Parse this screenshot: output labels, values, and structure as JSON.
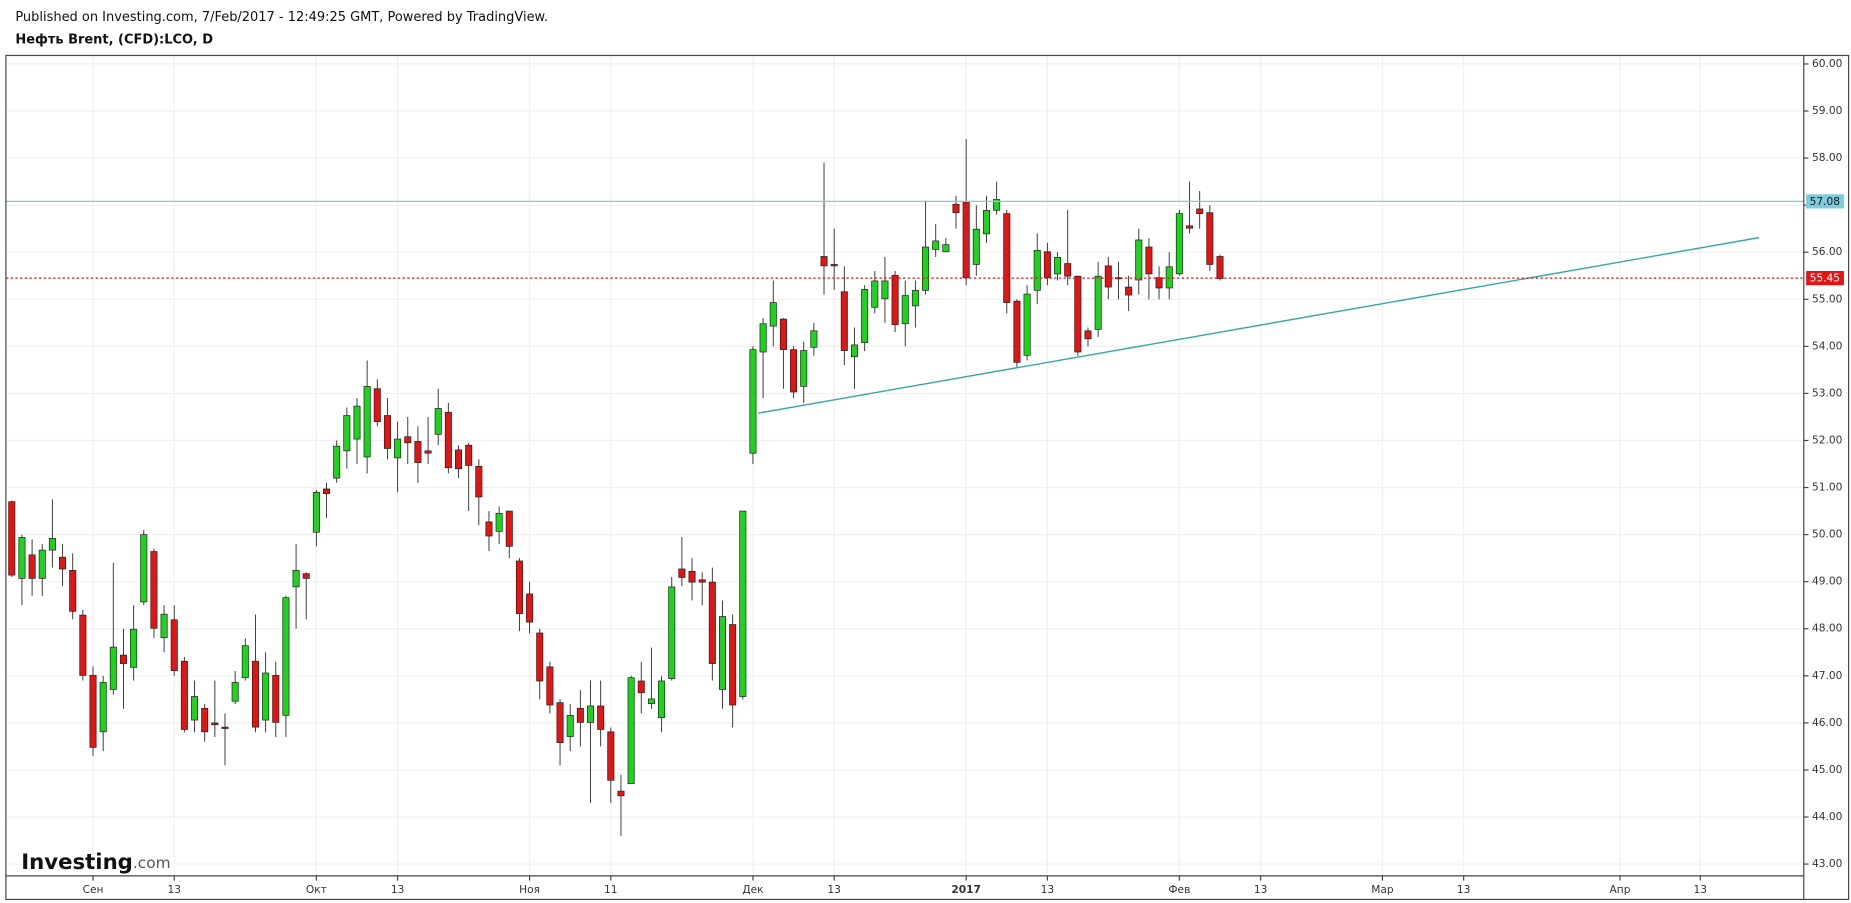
{
  "chart_data": {
    "type": "candlestick",
    "subtitle": "Published on Investing.com, 7/Feb/2017 - 12:49:25 GMT, Powered by TradingView.",
    "title": "Нефть Brent, (CFD):LCO, D",
    "up_color": "#1ed31e",
    "down_color": "#e31414",
    "grid": true,
    "series": [
      {
        "open": [
          50.7,
          49.07,
          49.57,
          49.07,
          49.67,
          49.52,
          49.24,
          48.29,
          47.01,
          45.81,
          46.71,
          47.44,
          47.18,
          48.57,
          49.64,
          47.81,
          48.19,
          47.31,
          46.06,
          46.31,
          46.0,
          45.91,
          46.46,
          46.96,
          47.31,
          46.06,
          47.01,
          46.16,
          48.89,
          49.17,
          50.05,
          50.97,
          51.2,
          51.78,
          52.03,
          51.65,
          53.1,
          52.53,
          51.63,
          52.08,
          51.98,
          51.78,
          52.13,
          52.6,
          51.8,
          51.9,
          51.45,
          50.27,
          50.07,
          50.5,
          49.44,
          48.74,
          47.91,
          47.19,
          46.43,
          45.71,
          46.31,
          46.01,
          46.36,
          45.81,
          44.55,
          44.71,
          46.89,
          46.41,
          46.11,
          46.94,
          49.27,
          49.22,
          49.04,
          48.99,
          46.71,
          48.09,
          46.56,
          51.73,
          53.88,
          54.43,
          54.58,
          53.93,
          53.15,
          53.98,
          55.91,
          55.74,
          55.16,
          53.78,
          54.08,
          54.83,
          55.01,
          55.51,
          54.48,
          54.86,
          55.19,
          56.06,
          56.01,
          57.02,
          57.07,
          55.74,
          56.39,
          56.89,
          56.82,
          54.96,
          53.81,
          55.19,
          56.01,
          55.54,
          55.76,
          55.49,
          54.33,
          54.36,
          55.71,
          55.46,
          55.26,
          55.41,
          56.11,
          55.46,
          55.24,
          55.54,
          56.56,
          56.92,
          56.84,
          55.91
        ],
        "high": [
          50.72,
          50.0,
          49.9,
          49.8,
          50.75,
          49.8,
          49.6,
          48.4,
          47.2,
          47.0,
          49.4,
          48.0,
          48.5,
          50.1,
          49.7,
          48.5,
          48.5,
          47.4,
          46.9,
          46.4,
          46.9,
          46.2,
          47.1,
          47.8,
          48.3,
          47.5,
          47.3,
          48.7,
          49.8,
          49.2,
          50.95,
          51.1,
          52.0,
          52.7,
          52.9,
          53.7,
          53.3,
          52.9,
          52.4,
          52.5,
          52.3,
          52.5,
          53.1,
          52.8,
          51.9,
          51.95,
          51.6,
          50.5,
          50.6,
          50.5,
          49.5,
          49.0,
          48.0,
          47.3,
          46.5,
          46.4,
          46.7,
          46.9,
          46.9,
          45.9,
          44.9,
          47.0,
          47.3,
          47.6,
          47.0,
          49.1,
          49.95,
          49.5,
          49.2,
          49.3,
          48.6,
          48.3,
          50.5,
          54.0,
          54.6,
          55.4,
          54.6,
          54.0,
          54.1,
          54.5,
          57.9,
          56.5,
          55.7,
          54.4,
          55.3,
          55.6,
          55.9,
          55.6,
          55.4,
          55.4,
          57.1,
          56.6,
          56.3,
          57.2,
          58.4,
          57.0,
          57.2,
          57.5,
          56.9,
          55.0,
          55.3,
          56.4,
          56.2,
          56.0,
          56.9,
          55.5,
          54.4,
          55.8,
          55.9,
          55.8,
          55.5,
          56.5,
          56.3,
          55.7,
          56.0,
          56.9,
          57.5,
          57.3,
          57.0,
          55.95
        ],
        "low": [
          49.1,
          48.5,
          48.7,
          48.7,
          49.3,
          48.9,
          48.2,
          46.9,
          45.3,
          45.4,
          46.6,
          46.3,
          46.9,
          48.5,
          47.8,
          47.5,
          47.0,
          45.8,
          45.8,
          45.6,
          45.7,
          45.1,
          46.4,
          46.9,
          45.8,
          45.8,
          45.7,
          45.7,
          48.0,
          48.2,
          49.75,
          50.35,
          51.1,
          51.4,
          51.5,
          51.3,
          52.3,
          51.6,
          50.9,
          51.5,
          51.1,
          51.5,
          51.9,
          51.3,
          51.2,
          50.5,
          50.2,
          49.65,
          49.8,
          49.5,
          47.95,
          47.9,
          46.5,
          46.2,
          45.1,
          45.4,
          45.5,
          44.3,
          45.5,
          44.3,
          43.6,
          44.7,
          46.2,
          46.3,
          45.8,
          46.9,
          48.9,
          48.6,
          48.5,
          46.9,
          46.3,
          45.9,
          46.5,
          51.5,
          52.9,
          54.0,
          53.1,
          52.9,
          52.8,
          53.8,
          55.1,
          55.2,
          53.6,
          53.1,
          53.9,
          54.7,
          54.5,
          54.3,
          54.0,
          54.4,
          55.1,
          55.9,
          56.0,
          56.5,
          55.3,
          55.5,
          56.2,
          56.8,
          54.7,
          53.55,
          53.7,
          54.9,
          55.3,
          55.4,
          55.3,
          53.8,
          54.0,
          54.2,
          55.0,
          55.0,
          54.75,
          55.1,
          55.0,
          55.0,
          55.0,
          55.5,
          56.4,
          56.5,
          55.6,
          55.4
        ],
        "close": [
          49.14,
          49.94,
          49.07,
          49.67,
          49.92,
          49.27,
          48.37,
          47.01,
          45.48,
          46.86,
          47.61,
          47.26,
          47.99,
          50.0,
          48.01,
          48.31,
          47.11,
          45.86,
          46.56,
          45.81,
          45.96,
          45.88,
          46.86,
          47.64,
          45.91,
          47.06,
          46.01,
          48.66,
          49.24,
          49.07,
          50.9,
          50.87,
          51.88,
          52.53,
          52.73,
          53.15,
          52.4,
          51.83,
          52.03,
          51.95,
          51.53,
          51.73,
          52.68,
          51.42,
          51.4,
          51.47,
          50.8,
          49.97,
          50.45,
          49.75,
          48.32,
          48.14,
          46.89,
          46.38,
          45.58,
          46.16,
          46.01,
          46.36,
          45.86,
          44.78,
          44.45,
          46.96,
          46.64,
          46.51,
          46.89,
          48.89,
          49.09,
          48.99,
          48.99,
          47.26,
          48.26,
          46.38,
          50.5,
          53.93,
          54.48,
          54.93,
          53.93,
          53.03,
          53.91,
          54.33,
          55.71,
          55.71,
          53.91,
          54.03,
          55.21,
          55.39,
          55.39,
          54.46,
          55.08,
          55.19,
          56.11,
          56.24,
          56.16,
          56.84,
          55.46,
          56.49,
          56.89,
          57.12,
          54.93,
          53.66,
          55.11,
          56.04,
          55.46,
          55.89,
          55.49,
          53.88,
          54.16,
          55.49,
          55.26,
          55.44,
          55.09,
          56.26,
          55.54,
          55.24,
          55.69,
          56.82,
          56.51,
          56.82,
          55.74,
          55.44
        ]
      }
    ],
    "xlim": [
      -0.58,
      176.5
    ],
    "xticks": [
      {
        "value": 8,
        "label": "Сен"
      },
      {
        "value": 16,
        "label": "13"
      },
      {
        "value": 30,
        "label": "Окт"
      },
      {
        "value": 38,
        "label": "13"
      },
      {
        "value": 51,
        "label": "Ноя"
      },
      {
        "value": 59,
        "label": "11"
      },
      {
        "value": 73,
        "label": "Дек"
      },
      {
        "value": 81,
        "label": "13"
      },
      {
        "value": 94,
        "label": "2017"
      },
      {
        "value": 102,
        "label": "13"
      },
      {
        "value": 115,
        "label": "Фев"
      },
      {
        "value": 123,
        "label": "13"
      },
      {
        "value": 135,
        "label": "Мар"
      },
      {
        "value": 143,
        "label": "13"
      },
      {
        "value": 158.4,
        "label": "Апр"
      },
      {
        "value": 166.3,
        "label": "13"
      }
    ],
    "ylim": [
      42.75,
      60.18
    ],
    "yticks": [
      {
        "value": 43,
        "label": "43.00"
      },
      {
        "value": 44,
        "label": "44.00"
      },
      {
        "value": 45,
        "label": "45.00"
      },
      {
        "value": 46,
        "label": "46.00"
      },
      {
        "value": 47,
        "label": "47.00"
      },
      {
        "value": 48,
        "label": "48.00"
      },
      {
        "value": 49,
        "label": "49.00"
      },
      {
        "value": 50,
        "label": "50.00"
      },
      {
        "value": 51,
        "label": "51.00"
      },
      {
        "value": 52,
        "label": "52.00"
      },
      {
        "value": 53,
        "label": "53.00"
      },
      {
        "value": 54,
        "label": "54.00"
      },
      {
        "value": 55,
        "label": "55.00"
      },
      {
        "value": 56,
        "label": "56.00"
      },
      {
        "value": 57,
        "label": "57.00"
      },
      {
        "value": 58,
        "label": "58.00"
      },
      {
        "value": 59,
        "label": "59.00"
      },
      {
        "value": 60,
        "label": "60.00"
      }
    ],
    "hlines": [
      {
        "value": 57.08,
        "color": "#7ecbdc",
        "box_color": "#7ecbdc",
        "text_color": "#1a1a1a",
        "style": "solid"
      },
      {
        "value": 55.45,
        "color": "#e31414",
        "box_color": "#e31414",
        "text_color": "#ffffff",
        "style": "dotted"
      }
    ],
    "trendline": {
      "x": [
        73.5,
        172.1
      ],
      "y": [
        52.58,
        56.31
      ],
      "color": "#3aa8a0"
    },
    "logo": {
      "name": "Investing",
      "suffix": ".com"
    }
  }
}
